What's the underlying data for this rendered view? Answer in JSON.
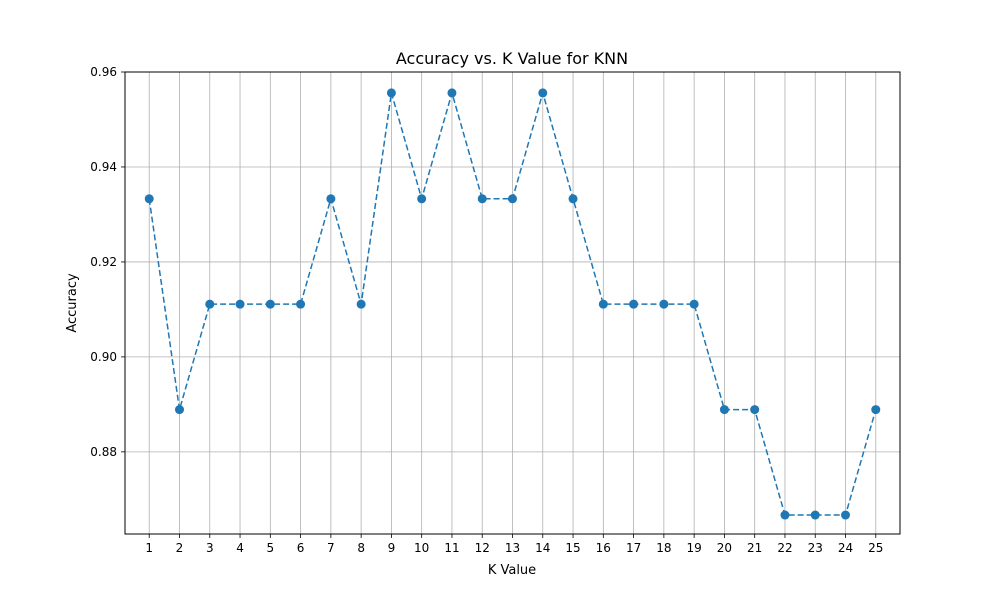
{
  "chart_data": {
    "type": "line",
    "title": "Accuracy vs. K Value for KNN",
    "xlabel": "K Value",
    "ylabel": "Accuracy",
    "x": [
      1,
      2,
      3,
      4,
      5,
      6,
      7,
      8,
      9,
      10,
      11,
      12,
      13,
      14,
      15,
      16,
      17,
      18,
      19,
      20,
      21,
      22,
      23,
      24,
      25
    ],
    "x_ticks": [
      "1",
      "2",
      "3",
      "4",
      "5",
      "6",
      "7",
      "8",
      "9",
      "10",
      "11",
      "12",
      "13",
      "14",
      "15",
      "16",
      "17",
      "18",
      "19",
      "20",
      "21",
      "22",
      "23",
      "24",
      "25"
    ],
    "y_ticks": [
      "0.88",
      "0.90",
      "0.92",
      "0.94",
      "0.96"
    ],
    "xlim": [
      0.2,
      25.8
    ],
    "ylim": [
      0.8627,
      0.96
    ],
    "grid": true,
    "series": [
      {
        "values": [
          0.9333,
          0.8889,
          0.9111,
          0.9111,
          0.9111,
          0.9111,
          0.9333,
          0.9111,
          0.9556,
          0.9333,
          0.9556,
          0.9333,
          0.9333,
          0.9556,
          0.9333,
          0.9111,
          0.9111,
          0.9111,
          0.9111,
          0.8889,
          0.8889,
          0.8667,
          0.8667,
          0.8667,
          0.8889
        ],
        "color": "#1f77b4",
        "line_style": "dashed",
        "marker": "circle"
      }
    ]
  }
}
